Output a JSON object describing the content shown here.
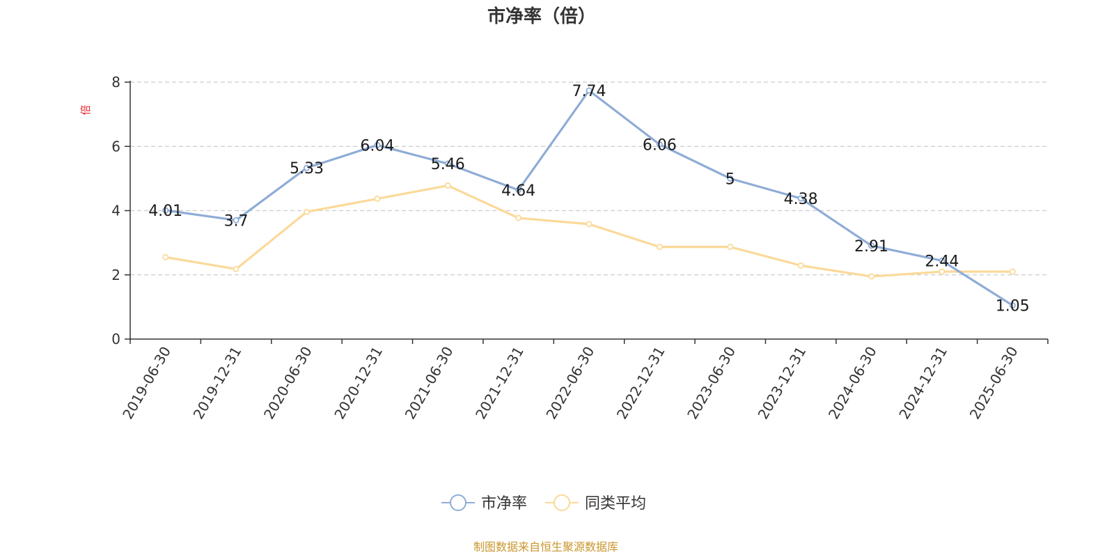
{
  "chart_data": {
    "type": "line",
    "title": "市净率（倍）",
    "ylabel": "倍",
    "categories": [
      "2019-06-30",
      "2019-12-31",
      "2020-06-30",
      "2020-12-31",
      "2021-06-30",
      "2021-12-31",
      "2022-06-30",
      "2022-12-31",
      "2023-06-30",
      "2023-12-31",
      "2024-06-30",
      "2024-12-31",
      "2025-06-30"
    ],
    "series": [
      {
        "name": "市净率",
        "color": "#8eacd6",
        "values": [
          4.01,
          3.7,
          5.33,
          6.04,
          5.46,
          4.64,
          7.74,
          6.06,
          5,
          4.38,
          2.91,
          2.44,
          1.05
        ],
        "labels": [
          "4.01",
          "3.7",
          "5.33",
          "6.04",
          "5.46",
          "4.64",
          "7.74",
          "6.06",
          "5",
          "4.38",
          "2.91",
          "2.44",
          "1.05"
        ],
        "show_labels": true
      },
      {
        "name": "同类平均",
        "color": "#fbd999",
        "values": [
          2.55,
          2.18,
          3.96,
          4.37,
          4.78,
          3.77,
          3.58,
          2.87,
          2.87,
          2.29,
          1.95,
          2.1,
          2.1
        ],
        "show_labels": false
      }
    ],
    "ylim": [
      0,
      8
    ],
    "yticks": [
      "0",
      "2",
      "4",
      "6",
      "8"
    ],
    "grid": true,
    "legend": "bottom-center"
  },
  "footer": {
    "source": "制图数据来自恒生聚源数据库",
    "color": "#c9962d"
  }
}
